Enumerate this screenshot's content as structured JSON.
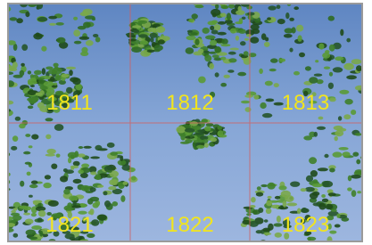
{
  "grid": {
    "rows": [
      [
        "1811",
        "1812",
        "1813"
      ],
      [
        "1821",
        "1822",
        "1823"
      ]
    ]
  }
}
